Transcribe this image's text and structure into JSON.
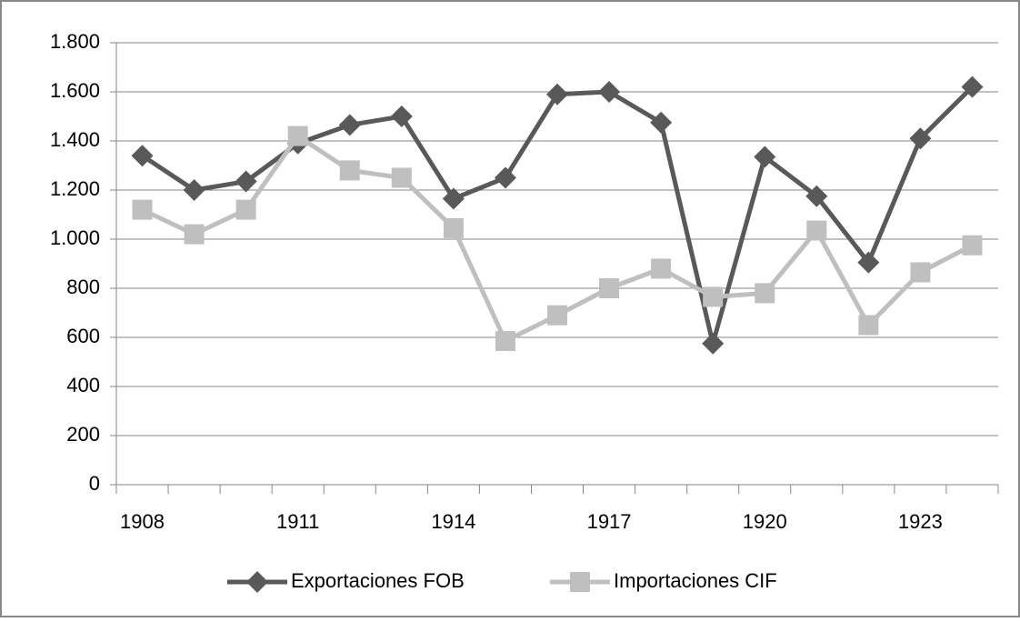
{
  "chart_data": {
    "type": "line",
    "categories": [
      "1908",
      null,
      null,
      "1911",
      null,
      null,
      "1914",
      null,
      null,
      "1917",
      null,
      null,
      "1920",
      null,
      null,
      "1923",
      null
    ],
    "series": [
      {
        "name": "Exportaciones FOB",
        "color": "#595959",
        "marker": "diamond",
        "values": [
          1340,
          1200,
          1235,
          1390,
          1465,
          1500,
          1165,
          1250,
          1590,
          1600,
          1475,
          575,
          1335,
          1175,
          905,
          1410,
          1620
        ]
      },
      {
        "name": "Importaciones CIF",
        "color": "#bfbfbf",
        "marker": "square",
        "values": [
          1120,
          1020,
          1120,
          1420,
          1280,
          1250,
          1045,
          585,
          690,
          800,
          880,
          765,
          780,
          1035,
          650,
          865,
          975
        ]
      }
    ],
    "ylim": [
      0,
      1800
    ],
    "yticks": [
      0,
      200,
      400,
      600,
      800,
      {
        "value": 1000,
        "label": "1.000"
      },
      {
        "value": 1200,
        "label": "1.200"
      },
      {
        "value": 1400,
        "label": "1.400"
      },
      {
        "value": 1600,
        "label": "1.600"
      },
      {
        "value": 1800,
        "label": "1.800"
      }
    ],
    "grid": true,
    "legend": "bottom"
  }
}
